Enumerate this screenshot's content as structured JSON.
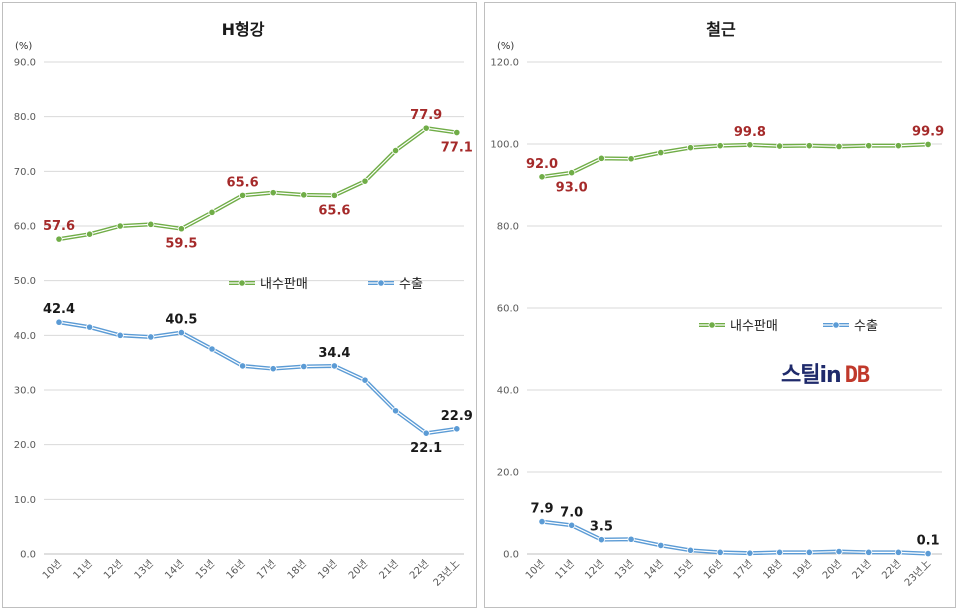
{
  "chart_data": [
    {
      "type": "line",
      "title": "H형강",
      "unit": "(%)",
      "categories": [
        "10년",
        "11년",
        "12년",
        "13년",
        "14년",
        "15년",
        "16년",
        "17년",
        "18년",
        "19년",
        "20년",
        "21년",
        "22년",
        "23년上"
      ],
      "ylim": [
        0,
        90
      ],
      "yticks": [
        "0.0",
        "10.0",
        "20.0",
        "30.0",
        "40.0",
        "50.0",
        "60.0",
        "70.0",
        "80.0",
        "90.0"
      ],
      "grid": true,
      "legend": "center",
      "series": [
        {
          "name": "내수판매",
          "color": "#70ad47",
          "values": [
            57.6,
            58.5,
            60.0,
            60.3,
            59.5,
            62.5,
            65.6,
            66.1,
            65.7,
            65.6,
            68.2,
            73.8,
            77.9,
            77.1
          ],
          "labels": [
            {
              "i": 0,
              "text": "57.6",
              "pos": "above"
            },
            {
              "i": 4,
              "text": "59.5",
              "pos": "below"
            },
            {
              "i": 6,
              "text": "65.6",
              "pos": "above"
            },
            {
              "i": 9,
              "text": "65.6",
              "pos": "below"
            },
            {
              "i": 12,
              "text": "77.9",
              "pos": "above"
            },
            {
              "i": 13,
              "text": "77.1",
              "pos": "below"
            }
          ]
        },
        {
          "name": "수출",
          "color": "#5b9bd5",
          "values": [
            42.4,
            41.5,
            40.0,
            39.7,
            40.5,
            37.5,
            34.4,
            33.9,
            34.3,
            34.4,
            31.8,
            26.2,
            22.1,
            22.9
          ],
          "labels": [
            {
              "i": 0,
              "text": "42.4",
              "pos": "above"
            },
            {
              "i": 4,
              "text": "40.5",
              "pos": "above"
            },
            {
              "i": 9,
              "text": "34.4",
              "pos": "above"
            },
            {
              "i": 12,
              "text": "22.1",
              "pos": "below"
            },
            {
              "i": 13,
              "text": "22.9",
              "pos": "above"
            }
          ]
        }
      ]
    },
    {
      "type": "line",
      "title": "철근",
      "unit": "(%)",
      "categories": [
        "10년",
        "11년",
        "12년",
        "13년",
        "14년",
        "15년",
        "16년",
        "17년",
        "18년",
        "19년",
        "20년",
        "21년",
        "22년",
        "23년上"
      ],
      "ylim": [
        0,
        120
      ],
      "yticks": [
        "0.0",
        "20.0",
        "40.0",
        "60.0",
        "80.0",
        "100.0",
        "120.0"
      ],
      "grid": true,
      "legend": "center",
      "series": [
        {
          "name": "내수판매",
          "color": "#70ad47",
          "values": [
            92.0,
            93.0,
            96.5,
            96.4,
            97.9,
            99.1,
            99.6,
            99.8,
            99.5,
            99.6,
            99.4,
            99.6,
            99.6,
            99.9
          ],
          "labels": [
            {
              "i": 0,
              "text": "92.0",
              "pos": "above"
            },
            {
              "i": 1,
              "text": "93.0",
              "pos": "below"
            },
            {
              "i": 7,
              "text": "99.8",
              "pos": "above"
            },
            {
              "i": 13,
              "text": "99.9",
              "pos": "above"
            }
          ]
        },
        {
          "name": "수출",
          "color": "#5b9bd5",
          "values": [
            7.9,
            7.0,
            3.5,
            3.6,
            2.1,
            0.9,
            0.4,
            0.2,
            0.4,
            0.4,
            0.6,
            0.4,
            0.4,
            0.1
          ],
          "labels": [
            {
              "i": 0,
              "text": "7.9",
              "pos": "above"
            },
            {
              "i": 1,
              "text": "7.0",
              "pos": "above"
            },
            {
              "i": 2,
              "text": "3.5",
              "pos": "above"
            },
            {
              "i": 13,
              "text": "0.1",
              "pos": "above"
            }
          ]
        }
      ]
    }
  ],
  "logo": {
    "part1": "스틸in",
    "part2": "DB"
  }
}
